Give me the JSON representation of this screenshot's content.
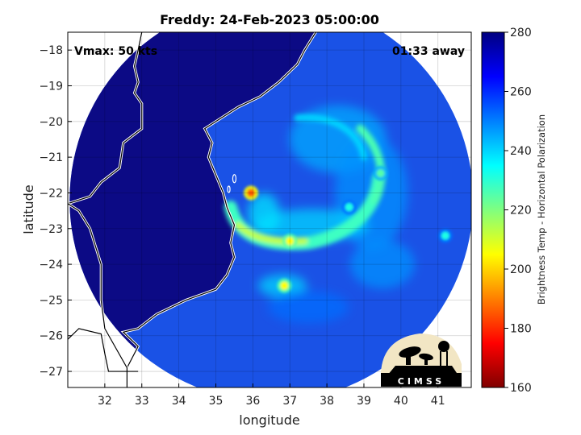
{
  "chart_data": {
    "type": "heatmap",
    "title": "Freddy: 24-Feb-2023 05:00:00",
    "xlabel": "longitude",
    "ylabel": "latitude",
    "xlim": [
      31.0,
      41.9
    ],
    "ylim": [
      -27.45,
      -17.5
    ],
    "x_ticks": [
      32,
      33,
      34,
      35,
      36,
      37,
      38,
      39,
      40,
      41
    ],
    "y_ticks": [
      -18,
      -19,
      -20,
      -21,
      -22,
      -23,
      -24,
      -25,
      -26,
      -27
    ],
    "grid": true,
    "annotations": {
      "vmax": "Vmax: 50 kts",
      "time_away": "01:33 away"
    },
    "colorbar": {
      "label": "Brightness Temp - Horizontal Polarization",
      "range": [
        160,
        280
      ],
      "ticks": [
        280,
        260,
        240,
        220,
        200,
        180,
        160
      ],
      "colormap": "jet"
    },
    "swath": {
      "center_lon": 36.5,
      "center_lat": -22.2,
      "radius_deg_lon": 5.45
    },
    "features": [
      {
        "name": "eye-wall hot spot",
        "lon": 35.95,
        "lat": -22.0,
        "tb": 185
      },
      {
        "name": "inner band",
        "lon": 37.0,
        "lat": -23.35,
        "tb": 205
      },
      {
        "name": "southern cell",
        "lon": 36.85,
        "lat": -24.6,
        "tb": 205
      },
      {
        "name": "outer band east",
        "lon": 39.45,
        "lat": -21.45,
        "tb": 225
      },
      {
        "name": "outer band south-east",
        "lon": 38.6,
        "lat": -22.4,
        "tb": 232
      },
      {
        "name": "isolated cell east",
        "lon": 41.2,
        "lat": -23.2,
        "tb": 232
      }
    ]
  },
  "logo": {
    "text": "CIMSS"
  },
  "colors": {
    "land": "#0c0a85",
    "ocean_base": "#1a52e6",
    "coastline": "#ffffff",
    "frame": "#000000"
  }
}
